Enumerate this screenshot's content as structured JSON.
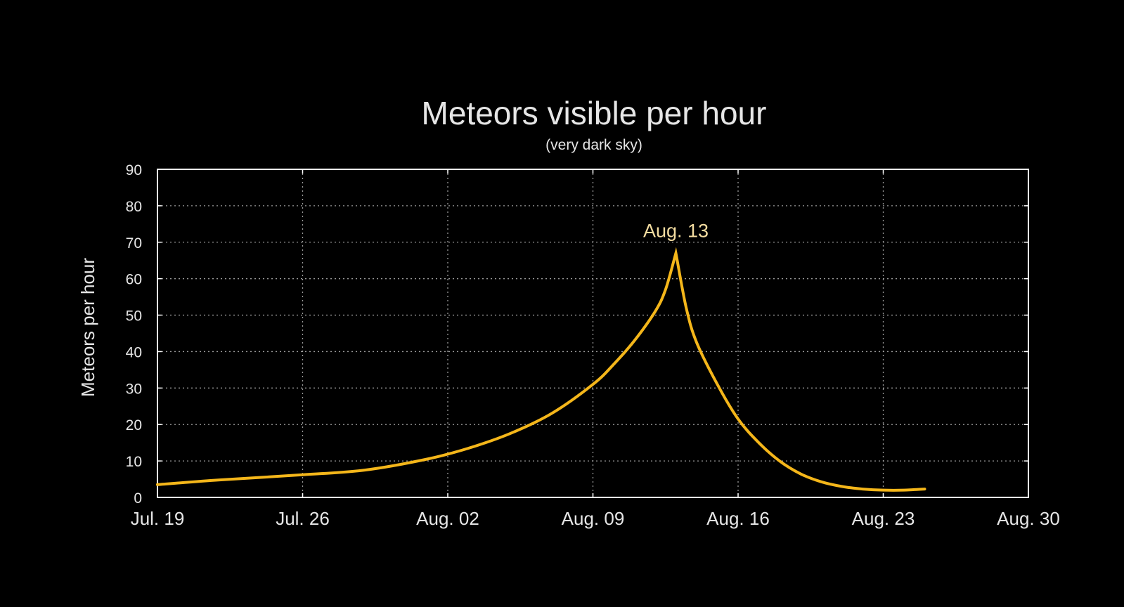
{
  "colors": {
    "background": "#000000",
    "text": "#e6e6e6",
    "grid": "#9a9a9a",
    "frame": "#ffffff",
    "series": "#f4b61a",
    "annotation": "#f3dca0"
  },
  "chart_data": {
    "type": "line",
    "title": "Meteors visible per hour",
    "subtitle": "(very dark sky)",
    "xlabel": "",
    "ylabel": "Meteors per hour",
    "xlim": [
      "Jul. 19",
      "Aug. 30"
    ],
    "ylim": [
      0,
      90
    ],
    "x_ticks": [
      "Jul. 19",
      "Jul. 26",
      "Aug. 02",
      "Aug. 09",
      "Aug. 16",
      "Aug. 23",
      "Aug. 30"
    ],
    "y_ticks": [
      0,
      10,
      20,
      30,
      40,
      50,
      60,
      70,
      80,
      90
    ],
    "grid": true,
    "legend": "none",
    "series": [
      {
        "x": [
          "Jul. 19",
          "Jul. 22",
          "Jul. 26",
          "Jul. 29",
          "Aug. 01",
          "Aug. 03",
          "Aug. 05",
          "Aug. 07",
          "Aug. 09",
          "Aug. 10",
          "Aug. 11",
          "Aug. 12",
          "Aug. 12.5",
          "Aug. 13",
          "Aug. 13.5",
          "Aug. 14",
          "Aug. 15",
          "Aug. 16",
          "Aug. 17",
          "Aug. 18",
          "Aug. 19",
          "Aug. 20",
          "Aug. 21",
          "Aug. 22",
          "Aug. 23",
          "Aug. 24",
          "Aug. 25"
        ],
        "values": [
          3.5,
          4.8,
          6.2,
          7.5,
          10.5,
          13.5,
          17.5,
          23,
          31,
          36.5,
          43,
          51,
          57,
          67,
          52,
          42.5,
          31,
          21.5,
          15,
          10,
          6.5,
          4.3,
          3,
          2.3,
          2,
          2,
          2.3
        ]
      }
    ],
    "annotations": [
      {
        "text": "Aug. 13",
        "x": "Aug. 13",
        "y": 67
      }
    ]
  }
}
